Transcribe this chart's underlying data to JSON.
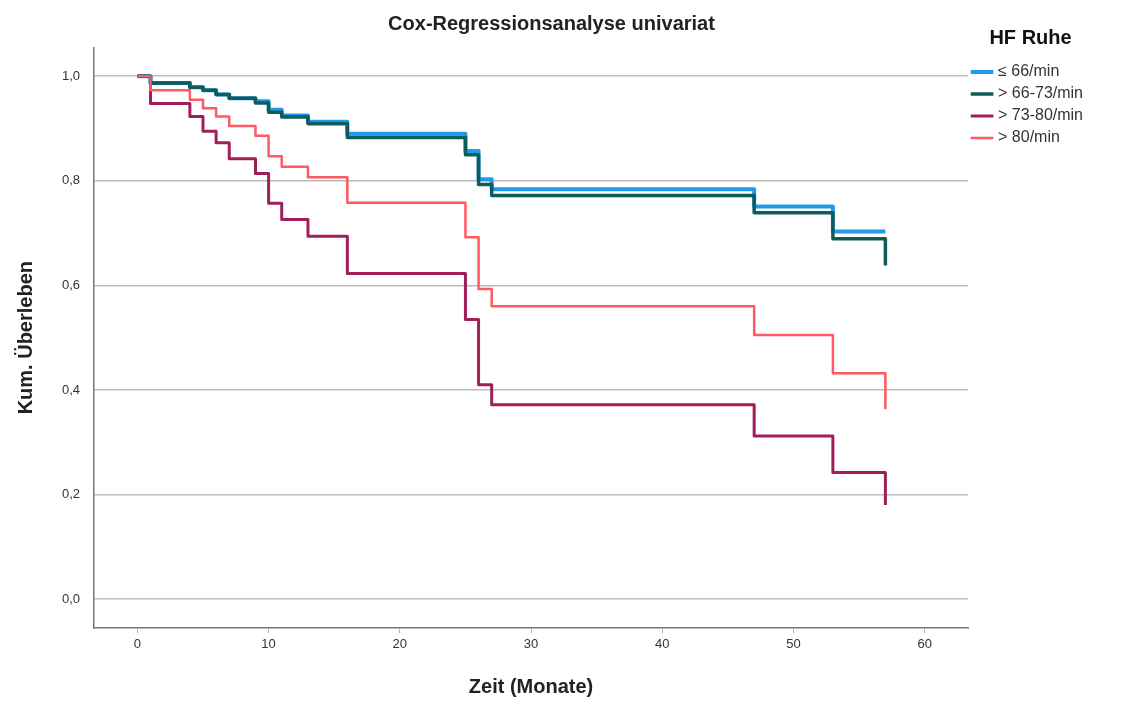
{
  "chart_data": {
    "type": "step",
    "title": "Cox-Regressionsanalyse univariat",
    "xlabel": "Zeit (Monate)",
    "ylabel": "Kum. Überleben",
    "legend_title": "HF Ruhe",
    "legend": "top right",
    "grid": "y",
    "xlim": [
      -3.3,
      63.3
    ],
    "xticks": [
      0,
      10,
      20,
      30,
      40,
      50,
      60
    ],
    "ylim": [
      -0.054,
      1.054
    ],
    "yticks": [
      {
        "value": 0,
        "label": "0,0"
      },
      {
        "value": 0.2,
        "label": "0,2"
      },
      {
        "value": 0.4,
        "label": "0,4"
      },
      {
        "value": 0.6,
        "label": "0,6"
      },
      {
        "value": 0.8,
        "label": "0,8"
      },
      {
        "value": 1,
        "label": "1,0"
      }
    ],
    "series": [
      {
        "name": "≤ 66/min",
        "color": "#1f9bea",
        "x": [
          0,
          1,
          4,
          5,
          6,
          7,
          9,
          10,
          11,
          13,
          16,
          25,
          26,
          27,
          47,
          53,
          57
        ],
        "values": [
          1,
          0.987,
          0.979,
          0.973,
          0.965,
          0.958,
          0.952,
          0.936,
          0.925,
          0.913,
          0.89,
          0.857,
          0.803,
          0.784,
          0.751,
          0.703,
          0.703
        ]
      },
      {
        "name": "> 66-73/min",
        "color": "#0e5c5c",
        "x": [
          0,
          1,
          4,
          5,
          6,
          7,
          9,
          10,
          11,
          13,
          16,
          25,
          26,
          27,
          47,
          53,
          57
        ],
        "values": [
          1,
          0.987,
          0.979,
          0.973,
          0.965,
          0.958,
          0.949,
          0.931,
          0.922,
          0.909,
          0.883,
          0.85,
          0.793,
          0.772,
          0.739,
          0.689,
          0.638
        ]
      },
      {
        "name": "> 73-80/min",
        "color": "#9e1f5a",
        "x": [
          0,
          1,
          4,
          5,
          6,
          7,
          9,
          10,
          11,
          13,
          16,
          25,
          26,
          27,
          47,
          53,
          57
        ],
        "values": [
          1,
          0.948,
          0.923,
          0.895,
          0.873,
          0.842,
          0.814,
          0.757,
          0.726,
          0.694,
          0.623,
          0.535,
          0.41,
          0.372,
          0.312,
          0.242,
          0.18
        ]
      },
      {
        "name": "> 80/min",
        "color": "#ff5a5f",
        "x": [
          0,
          1,
          4,
          5,
          6,
          7,
          9,
          10,
          11,
          13,
          16,
          25,
          26,
          27,
          47,
          53,
          57
        ],
        "values": [
          1,
          0.973,
          0.955,
          0.939,
          0.923,
          0.905,
          0.886,
          0.847,
          0.827,
          0.807,
          0.758,
          0.692,
          0.593,
          0.56,
          0.505,
          0.432,
          0.363
        ]
      }
    ]
  }
}
